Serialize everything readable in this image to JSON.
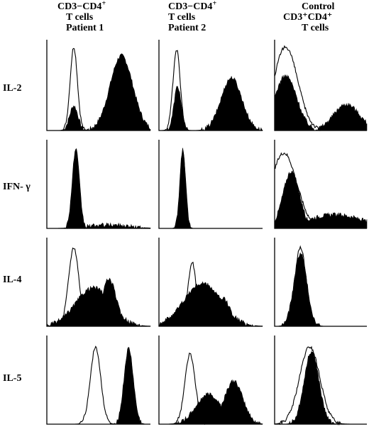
{
  "columns": [
    {
      "line1a": "CD3",
      "line1b": "−CD4",
      "line1sup": "+",
      "line2": "T cells",
      "line3": "Patient 1"
    },
    {
      "line1a": "CD3",
      "line1b": "−CD4",
      "line1sup": "+",
      "line2": "T cells",
      "line3": "Patient 2"
    },
    {
      "line1a": "Control",
      "line1b": "",
      "line1sup": "",
      "line2": "CD3⁺CD4⁺",
      "line3": "T cells"
    }
  ],
  "rows": [
    "IL-2",
    "IFN- γ",
    "IL-4",
    "IL-5"
  ],
  "colors": {
    "fill": "#000000",
    "outline": "#000000",
    "background": "#ffffff"
  },
  "chart_data": {
    "type": "histogram-grid",
    "title": "",
    "xlabel": "",
    "ylabel": "",
    "x_range": [
      0,
      1
    ],
    "y_range": [
      0,
      1
    ],
    "legend": "none",
    "grid": false,
    "panels": [
      {
        "row": "IL-2",
        "column": "Patient 1",
        "outline_peaks": [
          {
            "center": 0.26,
            "width": 0.035,
            "height": 0.95
          }
        ],
        "filled_peaks": [
          {
            "center": 0.26,
            "width": 0.04,
            "height": 0.28
          },
          {
            "center": 0.72,
            "width": 0.11,
            "height": 0.85
          }
        ]
      },
      {
        "row": "IL-2",
        "column": "Patient 2",
        "outline_peaks": [
          {
            "center": 0.17,
            "width": 0.035,
            "height": 0.92
          }
        ],
        "filled_peaks": [
          {
            "center": 0.18,
            "width": 0.035,
            "height": 0.5
          },
          {
            "center": 0.7,
            "width": 0.1,
            "height": 0.6
          }
        ]
      },
      {
        "row": "IL-2",
        "column": "Control",
        "outline_peaks": [
          {
            "center": 0.12,
            "width": 0.13,
            "height": 0.95
          }
        ],
        "filled_peaks": [
          {
            "center": 0.12,
            "width": 0.12,
            "height": 0.62
          },
          {
            "center": 0.78,
            "width": 0.14,
            "height": 0.3
          }
        ]
      },
      {
        "row": "IFN- γ",
        "column": "Patient 1",
        "outline_peaks": [
          {
            "center": 0.28,
            "width": 0.03,
            "height": 0.88
          }
        ],
        "filled_peaks": [
          {
            "center": 0.28,
            "width": 0.035,
            "height": 0.92
          },
          {
            "center": 0.6,
            "width": 0.2,
            "height": 0.04
          }
        ]
      },
      {
        "row": "IFN- γ",
        "column": "Patient 2",
        "outline_peaks": [
          {
            "center": 0.23,
            "width": 0.025,
            "height": 0.9
          }
        ],
        "filled_peaks": [
          {
            "center": 0.23,
            "width": 0.028,
            "height": 0.92
          }
        ]
      },
      {
        "row": "IFN- γ",
        "column": "Control",
        "outline_peaks": [
          {
            "center": 0.1,
            "width": 0.14,
            "height": 0.88
          }
        ],
        "filled_peaks": [
          {
            "center": 0.18,
            "width": 0.09,
            "height": 0.66
          },
          {
            "center": 0.65,
            "width": 0.3,
            "height": 0.16
          }
        ]
      },
      {
        "row": "IL-4",
        "column": "Patient 1",
        "outline_peaks": [
          {
            "center": 0.26,
            "width": 0.05,
            "height": 0.92
          }
        ],
        "filled_peaks": [
          {
            "center": 0.45,
            "width": 0.17,
            "height": 0.45
          },
          {
            "center": 0.6,
            "width": 0.07,
            "height": 0.55
          }
        ]
      },
      {
        "row": "IL-4",
        "column": "Patient 2",
        "outline_peaks": [
          {
            "center": 0.32,
            "width": 0.04,
            "height": 0.75
          }
        ],
        "filled_peaks": [
          {
            "center": 0.42,
            "width": 0.18,
            "height": 0.5
          },
          {
            "center": 0.62,
            "width": 0.07,
            "height": 0.32
          }
        ]
      },
      {
        "row": "IL-4",
        "column": "Control",
        "outline_peaks": [
          {
            "center": 0.28,
            "width": 0.06,
            "height": 0.92
          }
        ],
        "filled_peaks": [
          {
            "center": 0.28,
            "width": 0.07,
            "height": 0.85
          }
        ]
      },
      {
        "row": "IL-5",
        "column": "Patient 1",
        "outline_peaks": [
          {
            "center": 0.47,
            "width": 0.05,
            "height": 0.9
          }
        ],
        "filled_peaks": [
          {
            "center": 0.79,
            "width": 0.045,
            "height": 0.88
          }
        ]
      },
      {
        "row": "IL-5",
        "column": "Patient 2",
        "outline_peaks": [
          {
            "center": 0.3,
            "width": 0.05,
            "height": 0.82
          }
        ],
        "filled_peaks": [
          {
            "center": 0.48,
            "width": 0.12,
            "height": 0.35
          },
          {
            "center": 0.72,
            "width": 0.09,
            "height": 0.5
          }
        ]
      },
      {
        "row": "IL-5",
        "column": "Control",
        "outline_peaks": [
          {
            "center": 0.38,
            "width": 0.11,
            "height": 0.9
          }
        ],
        "filled_peaks": [
          {
            "center": 0.4,
            "width": 0.08,
            "height": 0.85
          }
        ]
      }
    ]
  }
}
